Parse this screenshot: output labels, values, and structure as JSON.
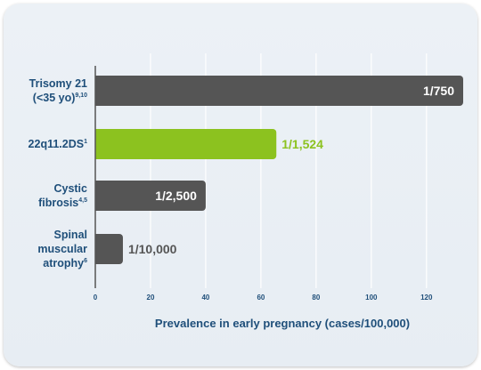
{
  "chart_data": {
    "type": "bar",
    "orientation": "horizontal",
    "categories": [
      {
        "lines": [
          {
            "text": "Trisomy 21",
            "sup": ""
          },
          {
            "text": "(<35 yo)",
            "sup": "9,10"
          }
        ]
      },
      {
        "lines": [
          {
            "text": "22q11.2DS",
            "sup": "1"
          }
        ]
      },
      {
        "lines": [
          {
            "text": "Cystic",
            "sup": ""
          },
          {
            "text": "fibrosis",
            "sup": "4,5"
          }
        ]
      },
      {
        "lines": [
          {
            "text": "Spinal",
            "sup": ""
          },
          {
            "text": "muscular",
            "sup": ""
          },
          {
            "text": "atrophy",
            "sup": "6"
          }
        ]
      }
    ],
    "values": [
      133.3,
      65.6,
      40,
      10
    ],
    "data_labels": [
      "1/750",
      "1/1,524",
      "1/2,500",
      "1/10,000"
    ],
    "label_inside": [
      true,
      false,
      true,
      false
    ],
    "bar_colors": [
      "#555555",
      "#8cc21f",
      "#555555",
      "#555555"
    ],
    "value_label_colors": [
      "#ffffff",
      "#8cc21f",
      "#ffffff",
      "#555555"
    ],
    "xlabel": "Prevalence in early pregnancy (cases/100,000)",
    "xlim": [
      0,
      133.3
    ],
    "xticks": [
      0,
      20,
      40,
      60,
      80,
      100,
      120
    ],
    "grid": true
  },
  "colors": {
    "text": "#1f4f7a",
    "grid": "#ffffff",
    "axis": "#555555",
    "highlight": "#8cc21f",
    "bar": "#555555"
  }
}
